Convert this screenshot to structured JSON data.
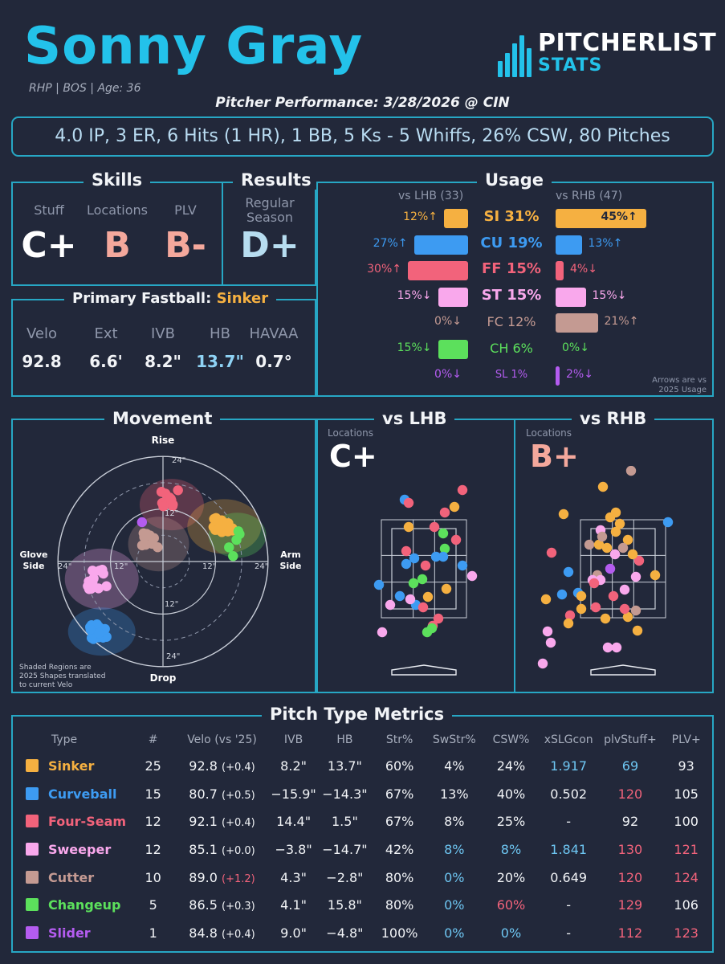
{
  "header": {
    "name": "Sonny Gray",
    "meta": "RHP | BOS | Age: 36",
    "subtitle": "Pitcher Performance: 3/28/2026 @ CIN",
    "summary": "4.0 IP, 3 ER, 6 Hits (1 HR), 1 BB, 5 Ks - 5 Whiffs, 26% CSW, 80 Pitches",
    "logo_top": "PITCHERLIST",
    "logo_bottom": "STATS"
  },
  "colors": {
    "accent": "#27a7c4",
    "sinker": "#f5b041",
    "curveball": "#3d9bf2",
    "four_seam": "#f2637b",
    "sweeper": "#f9a8ec",
    "cutter": "#c49a92",
    "changeup": "#5ce05c",
    "slider": "#b45cf0",
    "good": "#6ec6f2",
    "bad": "#f2637b"
  },
  "skills": {
    "title": "Skills",
    "stuff_label": "Stuff",
    "stuff_grade": "C+",
    "locations_label": "Locations",
    "locations_grade": "B",
    "plv_label": "PLV",
    "plv_grade": "B-"
  },
  "results": {
    "title": "Results",
    "label_line1": "Regular",
    "label_line2": "Season",
    "grade": "D+"
  },
  "primary_fastball": {
    "title": "Primary Fastball:",
    "pitch": "Sinker",
    "stats": [
      {
        "label": "Velo",
        "value": "92.8"
      },
      {
        "label": "Ext",
        "value": "6.6'"
      },
      {
        "label": "IVB",
        "value": "8.2\""
      },
      {
        "label": "HB",
        "value": "13.7\""
      },
      {
        "label": "HAVAA",
        "value": "0.7°"
      }
    ]
  },
  "usage": {
    "title": "Usage",
    "lhb_header": "vs LHB (33)",
    "rhb_header": "vs RHB (47)",
    "note_line1": "Arrows are vs",
    "note_line2": "2025 Usage",
    "rows": [
      {
        "name": "SI 31%",
        "color": "#f5b041",
        "lhb": "12%↑",
        "lhb_pct": 12,
        "rhb": "45%↑",
        "rhb_pct": 45
      },
      {
        "name": "CU 19%",
        "color": "#3d9bf2",
        "lhb": "27%↑",
        "lhb_pct": 27,
        "rhb": "13%↑",
        "rhb_pct": 13
      },
      {
        "name": "FF 15%",
        "color": "#f2637b",
        "lhb": "30%↑",
        "lhb_pct": 30,
        "rhb": "4%↓",
        "rhb_pct": 4
      },
      {
        "name": "ST 15%",
        "color": "#f9a8ec",
        "lhb": "15%↓",
        "lhb_pct": 15,
        "rhb": "15%↓",
        "rhb_pct": 15
      },
      {
        "name": "FC 12%",
        "color": "#c49a92",
        "lhb": "0%↓",
        "lhb_pct": 0,
        "rhb": "21%↑",
        "rhb_pct": 21
      },
      {
        "name": "CH 6%",
        "color": "#5ce05c",
        "lhb": "15%↓",
        "lhb_pct": 15,
        "rhb": "0%↓",
        "rhb_pct": 0
      },
      {
        "name": "SL 1%",
        "color": "#b45cf0",
        "lhb": "0%↓",
        "lhb_pct": 0,
        "rhb": "2%↓",
        "rhb_pct": 2
      }
    ]
  },
  "movement": {
    "title": "Movement",
    "rise": "Rise",
    "drop": "Drop",
    "glove_line1": "Glove",
    "glove_line2": "Side",
    "arm_line1": "Arm",
    "arm_line2": "Side",
    "ticks": [
      "24\"",
      "12\"",
      "12\"",
      "24\"",
      "24\"",
      "12\"",
      "12\"",
      "24\""
    ],
    "note_line1": "Shaded Regions are",
    "note_line2": "2025 Shapes translated",
    "note_line3": "to current Velo"
  },
  "locations": {
    "lhb_title": "vs LHB",
    "rhb_title": "vs RHB",
    "label": "Locations",
    "lhb_grade": "C+",
    "rhb_grade": "B+"
  },
  "metrics": {
    "title": "Pitch Type Metrics",
    "headers": [
      "Type",
      "#",
      "Velo (vs '25)",
      "IVB",
      "HB",
      "Str%",
      "SwStr%",
      "CSW%",
      "xSLGcon",
      "plvStuff+",
      "PLV+"
    ],
    "rows": [
      {
        "type": "Sinker",
        "color": "#f5b041",
        "n": "25",
        "velo": "92.8",
        "delta": "(+0.4)",
        "ivb": "8.2\"",
        "hb": "13.7\"",
        "str": "60%",
        "swstr": "4%",
        "csw": "24%",
        "xslg": "1.917",
        "stuff": "69",
        "plv": "93"
      },
      {
        "type": "Curveball",
        "color": "#3d9bf2",
        "n": "15",
        "velo": "80.7",
        "delta": "(+0.5)",
        "ivb": "-15.9\"",
        "hb": "-14.3\"",
        "str": "67%",
        "swstr": "13%",
        "csw": "40%",
        "xslg": "0.502",
        "stuff": "120",
        "plv": "105"
      },
      {
        "type": "Four-Seam",
        "color": "#f2637b",
        "n": "12",
        "velo": "92.1",
        "delta": "(+0.4)",
        "ivb": "14.4\"",
        "hb": "1.5\"",
        "str": "67%",
        "swstr": "8%",
        "csw": "25%",
        "xslg": "-",
        "stuff": "92",
        "plv": "100"
      },
      {
        "type": "Sweeper",
        "color": "#f9a8ec",
        "n": "12",
        "velo": "85.1",
        "delta": "(+0.0)",
        "ivb": "-3.8\"",
        "hb": "-14.7\"",
        "str": "42%",
        "swstr": "8%",
        "csw": "8%",
        "xslg": "1.841",
        "stuff": "130",
        "plv": "121"
      },
      {
        "type": "Cutter",
        "color": "#c49a92",
        "n": "10",
        "velo": "89.0",
        "delta": "(+1.2)",
        "ivb": "4.3\"",
        "hb": "-2.8\"",
        "str": "80%",
        "swstr": "0%",
        "csw": "20%",
        "xslg": "0.649",
        "stuff": "120",
        "plv": "124"
      },
      {
        "type": "Changeup",
        "color": "#5ce05c",
        "n": "5",
        "velo": "86.5",
        "delta": "(+0.3)",
        "ivb": "4.1\"",
        "hb": "15.8\"",
        "str": "80%",
        "swstr": "0%",
        "csw": "60%",
        "xslg": "-",
        "stuff": "129",
        "plv": "106"
      },
      {
        "type": "Slider",
        "color": "#b45cf0",
        "n": "1",
        "velo": "84.8",
        "delta": "(+0.4)",
        "ivb": "9.0\"",
        "hb": "-4.8\"",
        "str": "100%",
        "swstr": "0%",
        "csw": "0%",
        "xslg": "-",
        "stuff": "112",
        "plv": "123"
      }
    ]
  }
}
